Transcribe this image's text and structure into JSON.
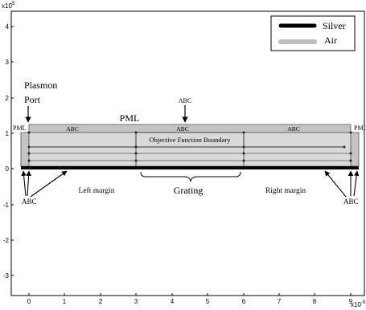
{
  "axes": {
    "x_exponent": "x10",
    "x_exponent_power": "-5",
    "y_exponent": "x10",
    "y_exponent_power": "-5",
    "x_ticks": [
      "0",
      "1",
      "2",
      "3",
      "4",
      "5",
      "6",
      "7",
      "8",
      "9"
    ],
    "y_ticks": [
      "4",
      "3",
      "2",
      "1",
      "0",
      "-1",
      "-2",
      "-3"
    ]
  },
  "legend": {
    "items": [
      {
        "label": "Silver",
        "color": "#000000"
      },
      {
        "label": "Air",
        "color": "#bdbdbd"
      }
    ]
  },
  "labels": {
    "plasmon_port_line1": "Plasmon",
    "plasmon_port_line2": "Port",
    "pml_top": "PML",
    "pml_left": "PML",
    "pml_right": "PML",
    "abc_above": "ABC",
    "abc_top_left": "ABC",
    "abc_top_mid": "ABC",
    "abc_top_right": "ABC",
    "objective_boundary": "Objective Function Boundary",
    "abc_bottom_left": "ABC",
    "abc_bottom_right": "ABC",
    "left_margin": "Left margin",
    "grating": "Grating",
    "right_margin": "Right margin"
  },
  "colors": {
    "silver": "#000000",
    "air": "#d9d9d9",
    "pml": "#c4c4c4"
  }
}
